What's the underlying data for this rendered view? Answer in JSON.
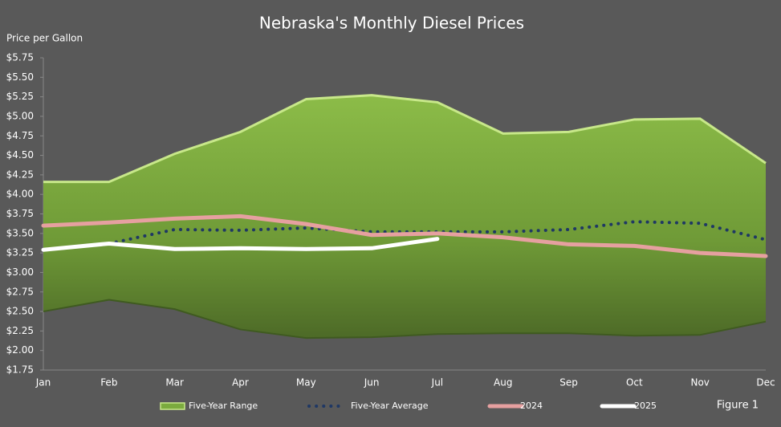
{
  "chart_data": {
    "type": "line",
    "title": "Nebraska's Monthly Diesel Prices",
    "y_label": "Price per Gallon",
    "annotation": "Figure 1",
    "categories": [
      "Jan",
      "Feb",
      "Mar",
      "Apr",
      "May",
      "Jun",
      "Jul",
      "Aug",
      "Sep",
      "Oct",
      "Nov",
      "Dec"
    ],
    "ylim": [
      1.75,
      5.75
    ],
    "yticks": [
      {
        "value": 1.75,
        "label": "$1.75"
      },
      {
        "value": 2.0,
        "label": "$2.00"
      },
      {
        "value": 2.25,
        "label": "$2.25"
      },
      {
        "value": 2.5,
        "label": "$2.50"
      },
      {
        "value": 2.75,
        "label": "$2.75"
      },
      {
        "value": 3.0,
        "label": "$3.00"
      },
      {
        "value": 3.25,
        "label": "$3.25"
      },
      {
        "value": 3.5,
        "label": "$3.50"
      },
      {
        "value": 3.75,
        "label": "$3.75"
      },
      {
        "value": 4.0,
        "label": "$4.00"
      },
      {
        "value": 4.25,
        "label": "$4.25"
      },
      {
        "value": 4.5,
        "label": "$4.50"
      },
      {
        "value": 4.75,
        "label": "$4.75"
      },
      {
        "value": 5.0,
        "label": "$5.00"
      },
      {
        "value": 5.25,
        "label": "$5.25"
      },
      {
        "value": 5.5,
        "label": "$5.50"
      },
      {
        "value": 5.75,
        "label": "$5.75"
      }
    ],
    "series": [
      {
        "name": "Five-Year Range",
        "color": "#7bab3e",
        "style": "band",
        "values": [
          4.16,
          4.16,
          4.52,
          4.8,
          5.22,
          5.27,
          5.18,
          4.78,
          4.8,
          4.96,
          4.97,
          4.4
        ],
        "lower": [
          2.5,
          2.65,
          2.53,
          2.27,
          2.16,
          2.17,
          2.21,
          2.22,
          2.22,
          2.19,
          2.2,
          2.37
        ]
      },
      {
        "name": "Five-Year Average",
        "color": "#1f3864",
        "style": "dotted",
        "values": [
          null,
          3.37,
          3.55,
          3.54,
          3.57,
          3.52,
          3.52,
          3.52,
          3.55,
          3.65,
          3.63,
          3.42
        ]
      },
      {
        "name": "2024",
        "color": "#e6a0a0",
        "style": "solid",
        "values": [
          3.6,
          3.64,
          3.69,
          3.72,
          3.62,
          3.48,
          3.5,
          3.45,
          3.36,
          3.34,
          3.25,
          3.21
        ]
      },
      {
        "name": "2025",
        "color": "#ffffff",
        "style": "solid",
        "values": [
          3.29,
          3.37,
          3.3,
          3.31,
          3.3,
          3.31,
          3.43,
          null,
          null,
          null,
          null,
          null
        ]
      }
    ]
  }
}
